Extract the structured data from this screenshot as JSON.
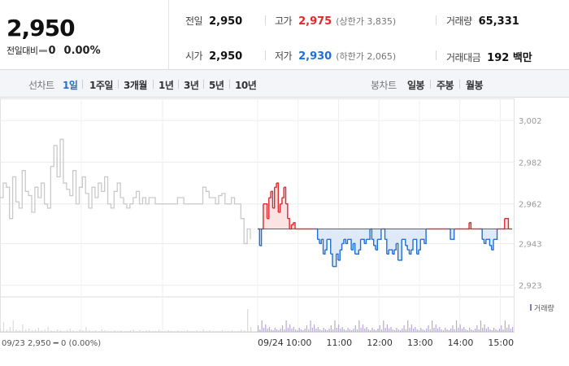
{
  "summary": {
    "price": "2,950",
    "change_label": "전일대비",
    "change_value": "0",
    "change_rate": "0.00%"
  },
  "stats": {
    "prev_close": {
      "label": "전일",
      "value": "2,950"
    },
    "open": {
      "label": "시가",
      "value": "2,950"
    },
    "high": {
      "label": "고가",
      "value": "2,975",
      "limit_text": "(상한가 3,835)"
    },
    "low": {
      "label": "저가",
      "value": "2,930",
      "limit_text": "(하한가 2,065)"
    },
    "volume": {
      "label": "거래량",
      "value": "65,331"
    },
    "amount": {
      "label": "거래대금",
      "value": "192 백만"
    }
  },
  "toolbar": {
    "line_chart_label": "선차트",
    "line_periods": [
      "1일",
      "1주일",
      "3개월",
      "1년",
      "3년",
      "5년",
      "10년"
    ],
    "active_period": "1일",
    "candle_chart_label": "봉차트",
    "candle_periods": [
      "일봉",
      "주봉",
      "월봉"
    ]
  },
  "chart_data": {
    "type": "line",
    "baseline": 2950,
    "ylim": [
      2919,
      3004
    ],
    "y_ticks": [
      "3,002",
      "2,982",
      "2,962",
      "2,943",
      "2,923"
    ],
    "y_tick_values": [
      3002,
      2982,
      2962,
      2943,
      2923
    ],
    "x_ticks": [
      "09/24",
      "10:00",
      "11:00",
      "12:00",
      "13:00",
      "14:00",
      "15:00"
    ],
    "x_tick_minutes": [
      0,
      60,
      120,
      180,
      240,
      300,
      360
    ],
    "x_minutes_range": [
      0,
      380
    ],
    "prev_session": {
      "name": "09/23",
      "values": [
        2965,
        2972,
        2970,
        2955,
        2975,
        2963,
        2960,
        2978,
        2968,
        2966,
        2958,
        2970,
        2965,
        2972,
        2962,
        2960,
        2980,
        2990,
        2975,
        2993,
        2972,
        2969,
        2966,
        2978,
        2962,
        2970,
        2975,
        2967,
        2960,
        2970,
        2965,
        2972,
        2968,
        2975,
        2962,
        2960,
        2968,
        2972,
        2965,
        2962,
        2960,
        2962,
        2965,
        2968,
        2962,
        2965,
        2962,
        2965,
        2965,
        2962,
        2962,
        2962,
        2962,
        2962,
        2962,
        2962,
        2965,
        2965,
        2962,
        2962,
        2962,
        2962,
        2962,
        2962,
        2970,
        2968,
        2965,
        2965,
        2962,
        2966,
        2967,
        2962,
        2962,
        2965,
        2962,
        2962,
        2955,
        2943,
        2950,
        2945
      ]
    },
    "session": {
      "name": "09/24",
      "values": [
        2950,
        2942,
        2950,
        2962,
        2962,
        2955,
        2965,
        2968,
        2960,
        2970,
        2972,
        2958,
        2962,
        2965,
        2970,
        2962,
        2955,
        2950,
        2952,
        2953,
        2950,
        2950,
        2950,
        2950,
        2950,
        2950,
        2950,
        2950,
        2950,
        2950,
        2950,
        2950,
        2945,
        2943,
        2945,
        2938,
        2940,
        2945,
        2945,
        2938,
        2932,
        2932,
        2938,
        2935,
        2940,
        2943,
        2945,
        2943,
        2945,
        2945,
        2940,
        2943,
        2938,
        2938,
        2940,
        2945,
        2945,
        2943,
        2945,
        2945,
        2950,
        2945,
        2942,
        2940,
        2945,
        2945,
        2950,
        2950,
        2945,
        2938,
        2940,
        2940,
        2938,
        2940,
        2943,
        2935,
        2935,
        2945,
        2945,
        2942,
        2940,
        2938,
        2940,
        2945,
        2945,
        2938,
        2940,
        2945,
        2945,
        2943,
        2950,
        2950,
        2950,
        2950,
        2950,
        2950,
        2950,
        2950,
        2950,
        2950,
        2950,
        2950,
        2950,
        2945,
        2945,
        2950,
        2950,
        2950,
        2950,
        2950,
        2950,
        2950,
        2950,
        2953,
        2950,
        2950,
        2950,
        2950,
        2950,
        2950,
        2945,
        2943,
        2945,
        2945,
        2942,
        2940,
        2945,
        2945,
        2950,
        2950,
        2950,
        2950,
        2955,
        2955,
        2950,
        2950,
        2950
      ]
    },
    "volume_legend": "거래량",
    "info_text": "09/23  2,950 ━ 0 (0.00%)",
    "colors": {
      "up": "#e0282c",
      "down": "#1f6fd6",
      "up_fill": "#fbe3e3",
      "down_fill": "#dfe9f7",
      "prev": "#c9c9c9",
      "volume": "#b6a9d6"
    }
  }
}
